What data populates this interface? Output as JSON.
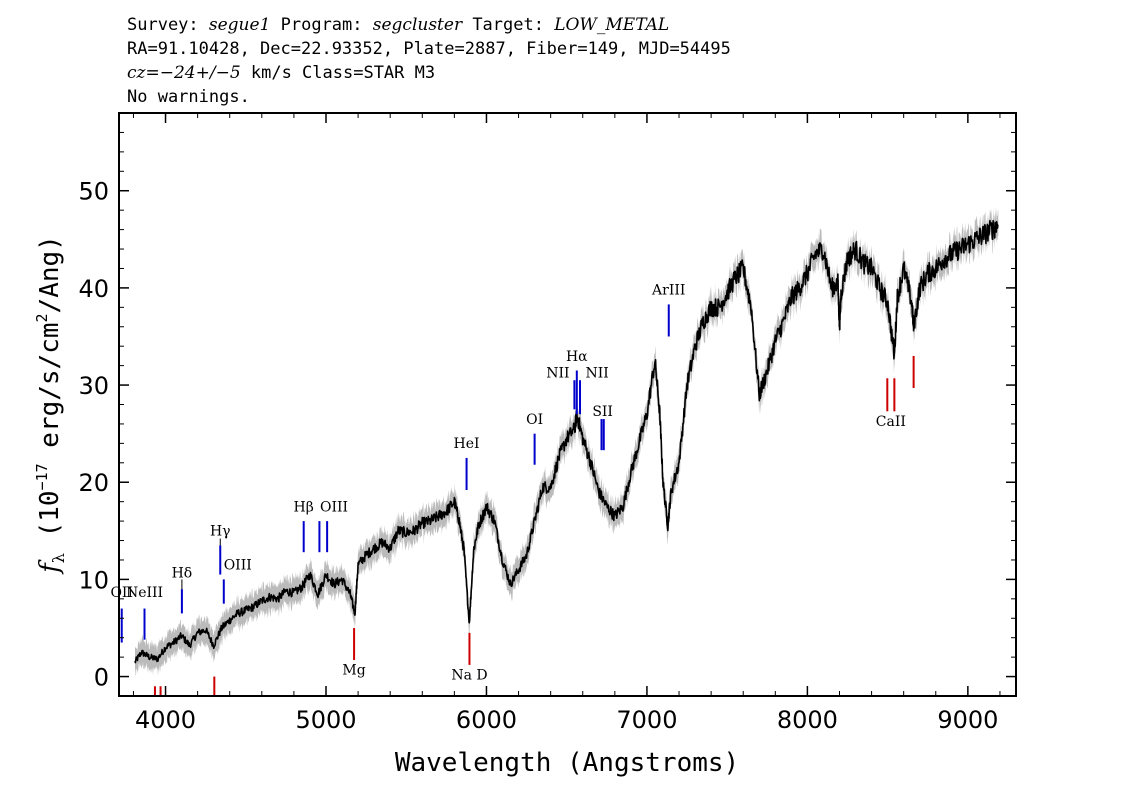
{
  "header": {
    "survey_label": "Survey: ",
    "survey": "segue1",
    "program_label": " Program: ",
    "program": "segcluster",
    "target_label": " Target: ",
    "target": "LOW_METAL",
    "line2": "RA=91.10428, Dec=22.93352, Plate=2887, Fiber=149, MJD=54495",
    "cz_label": "cz",
    "cz_value": "=−24+/−5",
    "cz_rest": " km/s Class=STAR M3",
    "line4": "No warnings."
  },
  "chart_data": {
    "type": "line",
    "xlabel": "Wavelength (Angstroms)",
    "ylabel": "f_λ (10^-17 erg/s/cm^2/Ang)",
    "xlim": [
      3710,
      9300
    ],
    "ylim": [
      -2,
      58
    ],
    "x_ticks": [
      4000,
      5000,
      6000,
      7000,
      8000,
      9000
    ],
    "y_ticks": [
      0,
      10,
      20,
      30,
      40,
      50
    ],
    "colors": {
      "spectrum": "#000000",
      "error_band": "#bbbbbb",
      "emission": "#0000cc",
      "absorption": "#cc0000",
      "label_stem": "#000000"
    },
    "series": [
      {
        "x": [
          3810,
          3850,
          3900,
          3950,
          4000,
          4050,
          4100,
          4150,
          4200,
          4250,
          4300,
          4350,
          4400,
          4450,
          4500,
          4550,
          4600,
          4650,
          4700,
          4750,
          4800,
          4850,
          4900,
          4950,
          5000,
          5050,
          5100,
          5150,
          5180,
          5200,
          5250,
          5300,
          5350,
          5400,
          5450,
          5500,
          5550,
          5600,
          5650,
          5700,
          5750,
          5800,
          5830,
          5860,
          5893,
          5920,
          5950,
          6000,
          6050,
          6100,
          6150,
          6200,
          6250,
          6300,
          6350,
          6400,
          6450,
          6500,
          6550,
          6563,
          6600,
          6650,
          6700,
          6750,
          6800,
          6850,
          6900,
          6950,
          7000,
          7050,
          7080,
          7100,
          7130,
          7150,
          7200,
          7250,
          7300,
          7350,
          7400,
          7450,
          7500,
          7550,
          7600,
          7650,
          7700,
          7750,
          7800,
          7850,
          7900,
          7950,
          8000,
          8050,
          8100,
          8150,
          8190,
          8200,
          8210,
          8250,
          8300,
          8350,
          8400,
          8450,
          8500,
          8542,
          8560,
          8600,
          8650,
          8662,
          8700,
          8750,
          8800,
          8850,
          8900,
          8950,
          9000,
          9050,
          9100,
          9150,
          9190
        ],
        "y": [
          1.5,
          2.5,
          2.0,
          1.8,
          3.0,
          3.5,
          4.2,
          3.2,
          4.5,
          4.8,
          3.2,
          5.0,
          5.8,
          6.5,
          6.8,
          7.2,
          7.8,
          8.2,
          8.0,
          8.8,
          8.6,
          9.2,
          10.5,
          8.5,
          10.5,
          9.5,
          10.0,
          8.5,
          6.5,
          11.5,
          12.5,
          13.2,
          13.8,
          13.2,
          15.0,
          14.8,
          15.0,
          15.8,
          16.0,
          16.5,
          17.0,
          18.0,
          16.0,
          13.0,
          5.5,
          13.0,
          15.5,
          17.5,
          16.0,
          12.0,
          9.5,
          11.0,
          12.5,
          16.0,
          19.5,
          19.5,
          22.5,
          24.5,
          25.5,
          27.0,
          24.5,
          22.0,
          19.0,
          17.5,
          16.5,
          17.5,
          21.0,
          24.0,
          27.0,
          32.5,
          27.0,
          20.0,
          15.5,
          19.0,
          22.0,
          30.0,
          34.0,
          36.5,
          38.0,
          38.0,
          39.5,
          41.0,
          42.0,
          38.0,
          29.0,
          31.5,
          34.5,
          36.5,
          39.0,
          40.0,
          41.5,
          43.5,
          44.0,
          40.0,
          40.5,
          36.0,
          39.5,
          43.0,
          44.0,
          42.5,
          42.0,
          40.0,
          38.5,
          33.0,
          39.0,
          42.0,
          38.5,
          36.0,
          40.0,
          41.5,
          42.0,
          43.0,
          43.5,
          44.0,
          44.5,
          45.0,
          45.5,
          46.0,
          46.5
        ]
      }
    ],
    "emission_lines": [
      {
        "label": "OII",
        "x": 3727,
        "y_base": 3.5,
        "y_top": 7.0
      },
      {
        "label": "NeIII",
        "x": 3869,
        "y_base": 3.8,
        "y_top": 7.0
      },
      {
        "label": "Hδ",
        "x": 4102,
        "y_base": 6.5,
        "y_top": 9.0
      },
      {
        "label": "Hγ",
        "x": 4341,
        "y_base": 10.5,
        "y_top": 13.5
      },
      {
        "label": "OIII",
        "x": 4363,
        "y_base": 7.5,
        "y_top": 10.0
      },
      {
        "label": "Hβ",
        "x": 4861,
        "y_base": 12.8,
        "y_top": 16.0
      },
      {
        "label": "OIII",
        "x": 4959,
        "y_base": 12.8,
        "y_top": 16.0
      },
      {
        "label": "OIII",
        "x": 5007,
        "y_base": 12.8,
        "y_top": 16.0
      },
      {
        "label": "HeI",
        "x": 5876,
        "y_base": 19.2,
        "y_top": 22.5
      },
      {
        "label": "OI",
        "x": 6300,
        "y_base": 21.8,
        "y_top": 25.0
      },
      {
        "label": "NII",
        "x": 6548,
        "y_base": 27.5,
        "y_top": 30.5
      },
      {
        "label": "Hα",
        "x": 6563,
        "y_base": 27.0,
        "y_top": 31.5
      },
      {
        "label": "NII",
        "x": 6583,
        "y_base": 27.0,
        "y_top": 30.5
      },
      {
        "label": "SII",
        "x": 6717,
        "y_base": 23.3,
        "y_top": 26.5
      },
      {
        "label": "SII",
        "x": 6731,
        "y_base": 23.3,
        "y_top": 26.5
      },
      {
        "label": "ArIII",
        "x": 7136,
        "y_base": 35.0,
        "y_top": 38.3
      }
    ],
    "absorption_lines": [
      {
        "label": "",
        "x": 3934,
        "y_top": -1.0,
        "y_bottom": -3.0
      },
      {
        "label": "",
        "x": 3969,
        "y_top": -1.0,
        "y_bottom": -3.0
      },
      {
        "label": "",
        "x": 4304,
        "y_top": 0.0,
        "y_bottom": -2.5
      },
      {
        "label": "Mg",
        "x": 5175,
        "y_top": 5.0,
        "y_bottom": 1.7
      },
      {
        "label": "Na D",
        "x": 5894,
        "y_top": 4.5,
        "y_bottom": 1.2
      },
      {
        "label": "CaII",
        "x": 8498,
        "y_top": 30.7,
        "y_bottom": 27.3
      },
      {
        "label": "CaII",
        "x": 8542,
        "y_top": 30.7,
        "y_bottom": 27.3
      },
      {
        "label": "",
        "x": 8662,
        "y_top": 33.0,
        "y_bottom": 29.7
      }
    ],
    "line_labels": [
      {
        "text": "OII",
        "x": 3727,
        "y": 8.2,
        "kind": "emission"
      },
      {
        "text": "NeIII",
        "x": 3869,
        "y": 8.2,
        "kind": "emission"
      },
      {
        "text": "Hδ",
        "x": 4102,
        "y": 10.2,
        "kind": "emission"
      },
      {
        "text": "Hγ",
        "x": 4341,
        "y": 14.5,
        "kind": "emission"
      },
      {
        "text": "OIII",
        "x": 4450,
        "y": 11.0,
        "kind": "emission"
      },
      {
        "text": "Hβ",
        "x": 4861,
        "y": 17.0,
        "kind": "emission"
      },
      {
        "text": "OIII",
        "x": 5050,
        "y": 17.0,
        "kind": "emission"
      },
      {
        "text": "HeI",
        "x": 5876,
        "y": 23.5,
        "kind": "emission"
      },
      {
        "text": "OI",
        "x": 6300,
        "y": 26.0,
        "kind": "emission"
      },
      {
        "text": "NII",
        "x": 6445,
        "y": 30.8,
        "kind": "emission"
      },
      {
        "text": "Hα",
        "x": 6563,
        "y": 32.5,
        "kind": "emission"
      },
      {
        "text": "NII",
        "x": 6690,
        "y": 30.8,
        "kind": "emission"
      },
      {
        "text": "SII",
        "x": 6724,
        "y": 26.8,
        "kind": "emission"
      },
      {
        "text": "ArIII",
        "x": 7136,
        "y": 39.3,
        "kind": "emission"
      },
      {
        "text": "Mg",
        "x": 5175,
        "y": 0.2,
        "kind": "absorption"
      },
      {
        "text": "Na D",
        "x": 5894,
        "y": -0.3,
        "kind": "absorption"
      },
      {
        "text": "CaII",
        "x": 8520,
        "y": 25.8,
        "kind": "absorption"
      }
    ]
  }
}
